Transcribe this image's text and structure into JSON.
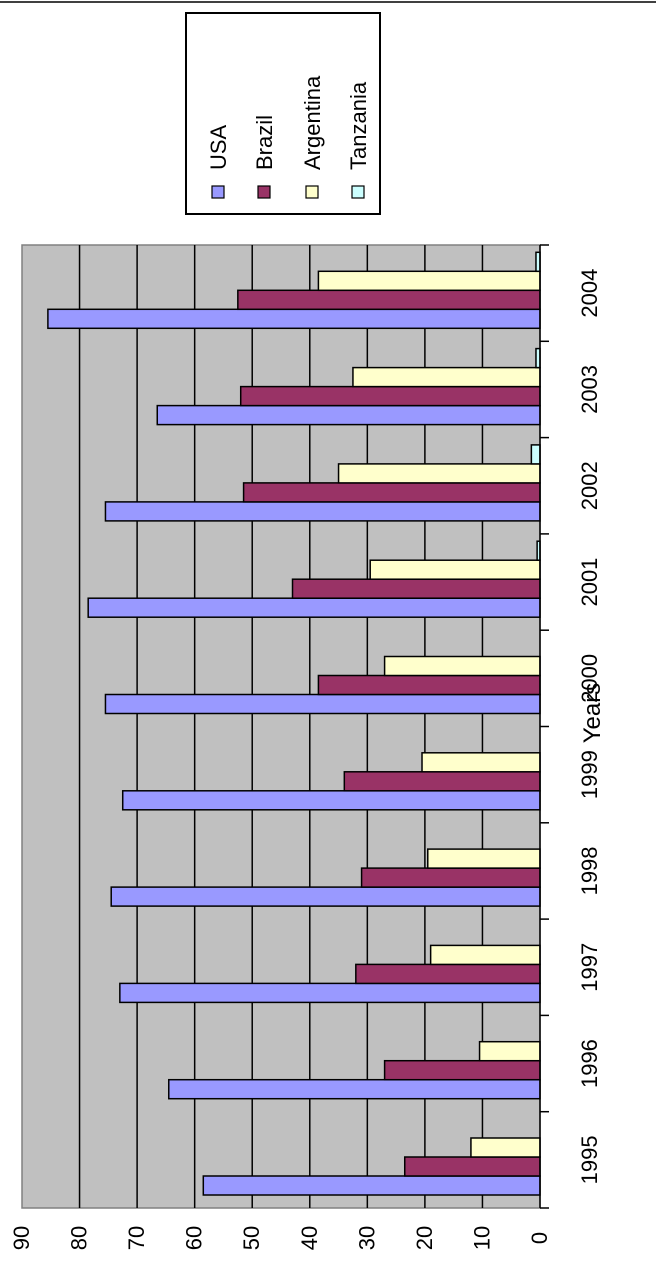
{
  "chart_data": {
    "type": "bar",
    "orientation": "rotated 90 degrees clockwise",
    "xlabel": "Years",
    "ylabel": "",
    "ylim": [
      0,
      90
    ],
    "yticks": [
      0,
      10,
      20,
      30,
      40,
      50,
      60,
      70,
      80,
      90
    ],
    "grid": true,
    "legend_position": "top-right",
    "categories": [
      "1995",
      "1996",
      "1997",
      "1998",
      "1999",
      "2000",
      "2001",
      "2002",
      "2003",
      "2004"
    ],
    "series": [
      {
        "name": "USA",
        "color": "#9999ff",
        "values": [
          58.5,
          64.5,
          73,
          74.5,
          72.5,
          75.5,
          78.5,
          75.5,
          66.5,
          85.5
        ]
      },
      {
        "name": "Brazil",
        "color": "#993366",
        "values": [
          23.5,
          27,
          32,
          31,
          34,
          38.5,
          43,
          51.5,
          52,
          52.5
        ]
      },
      {
        "name": "Argentina",
        "color": "#ffffcc",
        "values": [
          12,
          10.5,
          19,
          19.5,
          20.5,
          27,
          29.5,
          35,
          32.5,
          38.5
        ]
      },
      {
        "name": "Tanzania",
        "color": "#ccffff",
        "values": [
          0,
          0,
          0,
          0,
          0,
          0,
          0.5,
          1.5,
          0.7,
          0.7
        ]
      }
    ]
  }
}
